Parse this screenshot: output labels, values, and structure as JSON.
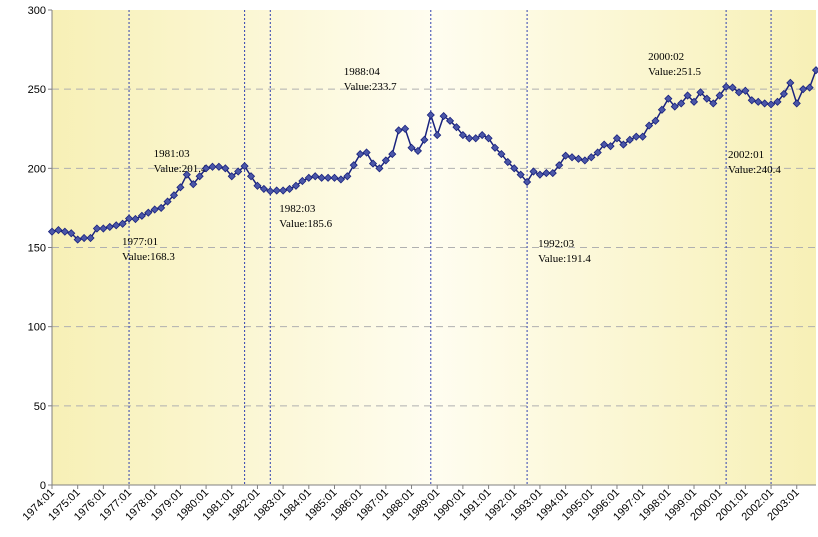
{
  "chart_data": {
    "type": "line",
    "categories": [
      "1974:01",
      "1974:02",
      "1974:03",
      "1974:04",
      "1975:01",
      "1975:02",
      "1975:03",
      "1975:04",
      "1976:01",
      "1976:02",
      "1976:03",
      "1976:04",
      "1977:01",
      "1977:02",
      "1977:03",
      "1977:04",
      "1978:01",
      "1978:02",
      "1978:03",
      "1978:04",
      "1979:01",
      "1979:02",
      "1979:03",
      "1979:04",
      "1980:01",
      "1980:02",
      "1980:03",
      "1980:04",
      "1981:01",
      "1981:02",
      "1981:03",
      "1981:04",
      "1982:01",
      "1982:02",
      "1982:03",
      "1982:04",
      "1983:01",
      "1983:02",
      "1983:03",
      "1983:04",
      "1984:01",
      "1984:02",
      "1984:03",
      "1984:04",
      "1985:01",
      "1985:02",
      "1985:03",
      "1985:04",
      "1986:01",
      "1986:02",
      "1986:03",
      "1986:04",
      "1987:01",
      "1987:02",
      "1987:03",
      "1987:04",
      "1988:01",
      "1988:02",
      "1988:03",
      "1988:04",
      "1989:01",
      "1989:02",
      "1989:03",
      "1989:04",
      "1990:01",
      "1990:02",
      "1990:03",
      "1990:04",
      "1991:01",
      "1991:02",
      "1991:03",
      "1991:04",
      "1992:01",
      "1992:02",
      "1992:03",
      "1992:04",
      "1993:01",
      "1993:02",
      "1993:03",
      "1993:04",
      "1994:01",
      "1994:02",
      "1994:03",
      "1994:04",
      "1995:01",
      "1995:02",
      "1995:03",
      "1995:04",
      "1996:01",
      "1996:02",
      "1996:03",
      "1996:04",
      "1997:01",
      "1997:02",
      "1997:03",
      "1997:04",
      "1998:01",
      "1998:02",
      "1998:03",
      "1998:04",
      "1999:01",
      "1999:02",
      "1999:03",
      "1999:04",
      "2000:01",
      "2000:02",
      "2000:03",
      "2000:04",
      "2001:01",
      "2001:02",
      "2001:03",
      "2001:04",
      "2002:01",
      "2002:02",
      "2002:03",
      "2002:04",
      "2003:01",
      "2003:02",
      "2003:03",
      "2003:04"
    ],
    "category_labels_every": 4,
    "series": [
      {
        "color": "#1a237e",
        "marker_color": "#4b57a8",
        "values": [
          160,
          161,
          160,
          159,
          155,
          156,
          156,
          162,
          162,
          163,
          164,
          165,
          168.3,
          168,
          170,
          172,
          174,
          175,
          179,
          183,
          188,
          196,
          190,
          195,
          200,
          201,
          201,
          200,
          195,
          198,
          201.4,
          195,
          189,
          187,
          185.6,
          186,
          186,
          187,
          189,
          192,
          194,
          195,
          194,
          194,
          194,
          193,
          195,
          202,
          209,
          210,
          203,
          200,
          205,
          209,
          224,
          225,
          213,
          211,
          218,
          233.7,
          221,
          233,
          230,
          226,
          221,
          219,
          219,
          221,
          219,
          213,
          209,
          204,
          200,
          196,
          191.4,
          198,
          196,
          197,
          197,
          202,
          208,
          207,
          206,
          205,
          207,
          210,
          215,
          214,
          219,
          215,
          218,
          220,
          220,
          227,
          230,
          237,
          244,
          239,
          241,
          246,
          242,
          248,
          244,
          241,
          246,
          251.5,
          251,
          248,
          249,
          243,
          242,
          241,
          240.4,
          242,
          247,
          254,
          241,
          250,
          251,
          262
        ]
      }
    ],
    "annotations": [
      {
        "x": "1977:01",
        "value": 168.3,
        "value_label": "Value:168.3"
      },
      {
        "x": "1981:03",
        "value": 201.4,
        "value_label": "Value:201.4"
      },
      {
        "x": "1982:03",
        "value": 185.6,
        "value_label": "Value:185.6"
      },
      {
        "x": "1988:04",
        "value": 233.7,
        "value_label": "Value:233.7"
      },
      {
        "x": "1992:03",
        "value": 191.4,
        "value_label": "Value:191.4"
      },
      {
        "x": "2000:02",
        "value": 251.5,
        "value_label": "Value:251.5"
      },
      {
        "x": "2002:01",
        "value": 240.4,
        "value_label": "Value:240.4"
      }
    ],
    "ylim": [
      0,
      300
    ],
    "yticks": [
      0,
      50,
      100,
      150,
      200,
      250,
      300
    ],
    "grid": true
  }
}
